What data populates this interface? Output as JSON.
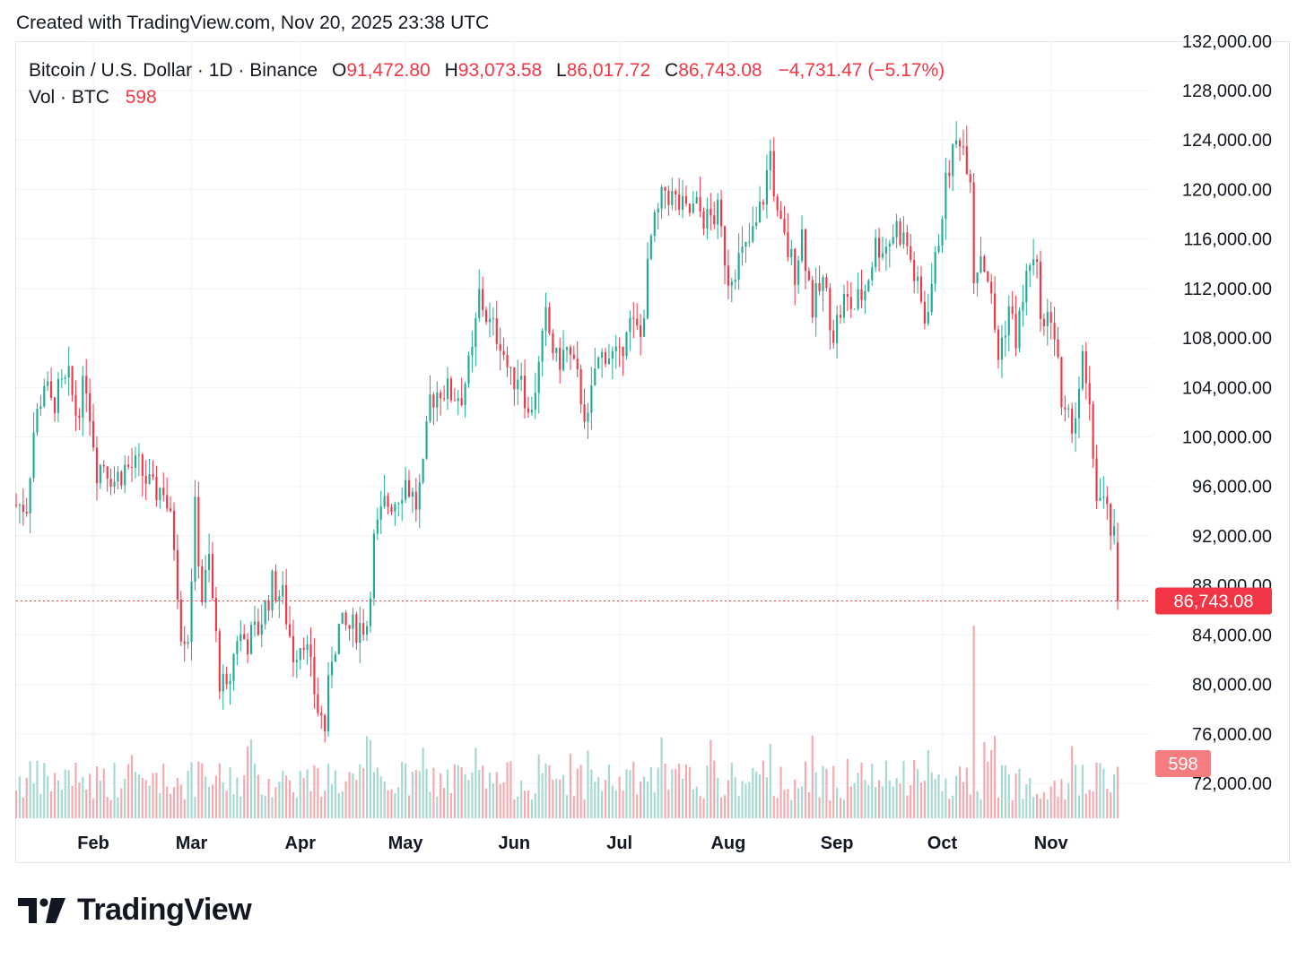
{
  "header": {
    "created": "Created with TradingView.com, Nov 20, 2025 23:38 UTC"
  },
  "legend": {
    "symbol": "Bitcoin / U.S. Dollar · 1D · Binance",
    "open_label": "O",
    "open": "91,472.80",
    "high_label": "H",
    "high": "93,073.58",
    "low_label": "L",
    "low": "86,017.72",
    "close_label": "C",
    "close": "86,743.08",
    "change": "−4,731.47 (−5.17%)",
    "vol_label": "Vol · BTC",
    "vol": "598"
  },
  "price_badge": "86,743.08",
  "volume_badge": "598",
  "brand": {
    "name": "TradingView"
  },
  "colors": {
    "up": "#22ab94",
    "down": "#f23645",
    "grid": "#f0f3fa",
    "text": "#131722"
  },
  "chart_data": {
    "type": "candlestick",
    "title": "Bitcoin / U.S. Dollar · 1D · Binance",
    "y_ticks": [
      72000,
      76000,
      80000,
      84000,
      88000,
      92000,
      96000,
      100000,
      104000,
      108000,
      112000,
      116000,
      120000,
      124000,
      128000,
      132000
    ],
    "y_tick_labels": [
      "72,000.00",
      "76,000.00",
      "80,000.00",
      "84,000.00",
      "88,000.00",
      "92,000.00",
      "96,000.00",
      "100,000.00",
      "104,000.00",
      "108,000.00",
      "112,000.00",
      "116,000.00",
      "120,000.00",
      "124,000.00",
      "128,000.00",
      "132,000.00"
    ],
    "ylim": [
      69000,
      132000
    ],
    "x_ticks": [
      "Feb",
      "Mar",
      "Apr",
      "May",
      "Jun",
      "Jul",
      "Aug",
      "Sep",
      "Oct",
      "Nov"
    ],
    "x_tick_dates": [
      "2025-02-01",
      "2025-03-01",
      "2025-04-01",
      "2025-05-01",
      "2025-06-01",
      "2025-07-01",
      "2025-08-01",
      "2025-09-01",
      "2025-10-01",
      "2025-11-01"
    ],
    "x_range": [
      "2025-01-10",
      "2025-11-20"
    ],
    "last_price": 86743.08,
    "grid": true,
    "series": [
      {
        "name": "BTC/USD",
        "type": "candlestick",
        "closes": [
          [
            "2025-01-10",
            94500
          ],
          [
            "2025-01-13",
            94500
          ],
          [
            "2025-01-15",
            100500
          ],
          [
            "2025-01-18",
            104500
          ],
          [
            "2025-01-20",
            102500
          ],
          [
            "2025-01-22",
            103500
          ],
          [
            "2025-01-25",
            104500
          ],
          [
            "2025-01-27",
            102000
          ],
          [
            "2025-01-30",
            104500
          ],
          [
            "2025-02-02",
            97500
          ],
          [
            "2025-02-04",
            98000
          ],
          [
            "2025-02-07",
            96500
          ],
          [
            "2025-02-10",
            97500
          ],
          [
            "2025-02-14",
            97500
          ],
          [
            "2025-02-18",
            95500
          ],
          [
            "2025-02-21",
            96000
          ],
          [
            "2025-02-24",
            91500
          ],
          [
            "2025-02-26",
            84500
          ],
          [
            "2025-02-28",
            84000
          ],
          [
            "2025-03-02",
            94000
          ],
          [
            "2025-03-04",
            87000
          ],
          [
            "2025-03-06",
            90000
          ],
          [
            "2025-03-09",
            80500
          ],
          [
            "2025-03-11",
            79000
          ],
          [
            "2025-03-14",
            84000
          ],
          [
            "2025-03-17",
            83500
          ],
          [
            "2025-03-20",
            84500
          ],
          [
            "2025-03-24",
            88000
          ],
          [
            "2025-03-27",
            87000
          ],
          [
            "2025-03-30",
            82500
          ],
          [
            "2025-04-02",
            84000
          ],
          [
            "2025-04-06",
            78000
          ],
          [
            "2025-04-08",
            76500
          ],
          [
            "2025-04-10",
            82500
          ],
          [
            "2025-04-12",
            84500
          ],
          [
            "2025-04-16",
            84500
          ],
          [
            "2025-04-20",
            85000
          ],
          [
            "2025-04-22",
            91500
          ],
          [
            "2025-04-25",
            94500
          ],
          [
            "2025-04-28",
            95000
          ],
          [
            "2025-05-01",
            96500
          ],
          [
            "2025-05-04",
            94500
          ],
          [
            "2025-05-06",
            97000
          ],
          [
            "2025-05-08",
            103000
          ],
          [
            "2025-05-11",
            104000
          ],
          [
            "2025-05-14",
            103500
          ],
          [
            "2025-05-17",
            103500
          ],
          [
            "2025-05-20",
            106500
          ],
          [
            "2025-05-22",
            111500
          ],
          [
            "2025-05-25",
            109000
          ],
          [
            "2025-05-28",
            108000
          ],
          [
            "2025-05-31",
            104500
          ],
          [
            "2025-06-03",
            105500
          ],
          [
            "2025-06-05",
            101500
          ],
          [
            "2025-06-08",
            105500
          ],
          [
            "2025-06-10",
            109500
          ],
          [
            "2025-06-13",
            106000
          ],
          [
            "2025-06-16",
            107000
          ],
          [
            "2025-06-19",
            104500
          ],
          [
            "2025-06-22",
            101000
          ],
          [
            "2025-06-24",
            105500
          ],
          [
            "2025-06-27",
            107000
          ],
          [
            "2025-07-01",
            106000
          ],
          [
            "2025-07-03",
            109500
          ],
          [
            "2025-07-07",
            108000
          ],
          [
            "2025-07-10",
            116000
          ],
          [
            "2025-07-12",
            118000
          ],
          [
            "2025-07-14",
            120000
          ],
          [
            "2025-07-17",
            119000
          ],
          [
            "2025-07-20",
            118000
          ],
          [
            "2025-07-23",
            118500
          ],
          [
            "2025-07-26",
            117500
          ],
          [
            "2025-07-29",
            118000
          ],
          [
            "2025-08-01",
            113000
          ],
          [
            "2025-08-03",
            114000
          ],
          [
            "2025-08-06",
            115000
          ],
          [
            "2025-08-09",
            117000
          ],
          [
            "2025-08-11",
            119500
          ],
          [
            "2025-08-13",
            123000
          ],
          [
            "2025-08-15",
            117500
          ],
          [
            "2025-08-18",
            115000
          ],
          [
            "2025-08-20",
            113500
          ],
          [
            "2025-08-22",
            116500
          ],
          [
            "2025-08-25",
            110500
          ],
          [
            "2025-08-28",
            112500
          ],
          [
            "2025-08-31",
            108500
          ],
          [
            "2025-09-03",
            111000
          ],
          [
            "2025-09-06",
            110500
          ],
          [
            "2025-09-09",
            112000
          ],
          [
            "2025-09-12",
            115500
          ],
          [
            "2025-09-15",
            115500
          ],
          [
            "2025-09-18",
            117000
          ],
          [
            "2025-09-21",
            115500
          ],
          [
            "2025-09-23",
            113000
          ],
          [
            "2025-09-26",
            109500
          ],
          [
            "2025-09-29",
            114000
          ],
          [
            "2025-10-01",
            118500
          ],
          [
            "2025-10-03",
            122000
          ],
          [
            "2025-10-06",
            124500
          ],
          [
            "2025-10-09",
            121500
          ],
          [
            "2025-10-10",
            113000
          ],
          [
            "2025-10-12",
            115000
          ],
          [
            "2025-10-14",
            113000
          ],
          [
            "2025-10-17",
            106500
          ],
          [
            "2025-10-20",
            110500
          ],
          [
            "2025-10-22",
            108000
          ],
          [
            "2025-10-24",
            111000
          ],
          [
            "2025-10-26",
            114500
          ],
          [
            "2025-10-28",
            113000
          ],
          [
            "2025-10-30",
            108500
          ],
          [
            "2025-11-01",
            110000
          ],
          [
            "2025-11-03",
            106500
          ],
          [
            "2025-11-04",
            101500
          ],
          [
            "2025-11-06",
            101000
          ],
          [
            "2025-11-08",
            102000
          ],
          [
            "2025-11-10",
            106000
          ],
          [
            "2025-11-12",
            101500
          ],
          [
            "2025-11-14",
            95500
          ],
          [
            "2025-11-16",
            94500
          ],
          [
            "2025-11-18",
            92500
          ],
          [
            "2025-11-19",
            91500
          ],
          [
            "2025-11-20",
            86743
          ]
        ]
      },
      {
        "name": "Vol · BTC",
        "type": "bar",
        "last": 598
      }
    ]
  }
}
